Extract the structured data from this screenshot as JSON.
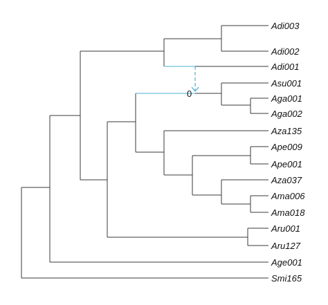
{
  "tips": [
    {
      "id": "t1",
      "label": "Adi003"
    },
    {
      "id": "t2",
      "label": "Adi002"
    },
    {
      "id": "t3",
      "label": "Adi001"
    },
    {
      "id": "t4",
      "label": "Asu001"
    },
    {
      "id": "t5",
      "label": "Aga001"
    },
    {
      "id": "t6",
      "label": "Aga002"
    },
    {
      "id": "t7",
      "label": "Aza135"
    },
    {
      "id": "t8",
      "label": "Ape009"
    },
    {
      "id": "t9",
      "label": "Ape001"
    },
    {
      "id": "t10",
      "label": "Aza037"
    },
    {
      "id": "t11",
      "label": "Ama006"
    },
    {
      "id": "t12",
      "label": "Ama018"
    },
    {
      "id": "t13",
      "label": "Aru001"
    },
    {
      "id": "t14",
      "label": "Aru127"
    },
    {
      "id": "t15",
      "label": "Age001"
    },
    {
      "id": "t16",
      "label": "Smi165"
    }
  ],
  "highlight": {
    "node_label": "0",
    "color": "#4bb1d0"
  },
  "colors": {
    "branch": "#3a3a3a",
    "text": "#111111",
    "background": "#ffffff"
  }
}
